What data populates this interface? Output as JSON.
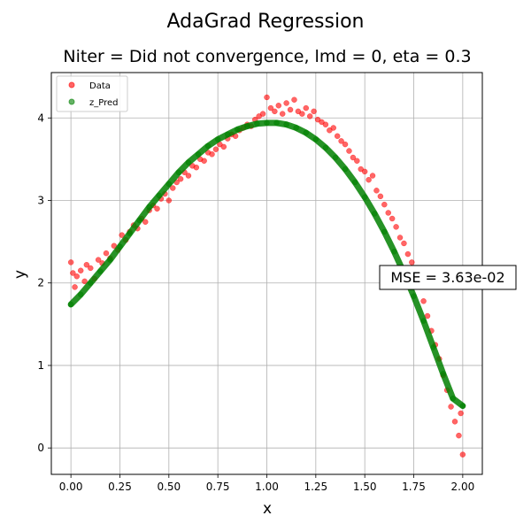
{
  "chart_data": {
    "type": "scatter",
    "suptitle": "AdaGrad Regression",
    "title": "Niter = Did not convergence, lmd = 0, eta = 0.3",
    "xlabel": "x",
    "ylabel": "y",
    "xlim": [
      -0.1,
      2.1
    ],
    "ylim": [
      -0.32,
      4.55
    ],
    "xticks": [
      "0.00",
      "0.25",
      "0.50",
      "0.75",
      "1.00",
      "1.25",
      "1.50",
      "1.75",
      "2.00"
    ],
    "yticks": [
      "0",
      "1",
      "2",
      "3",
      "4"
    ],
    "grid": true,
    "legend": {
      "position": "top-left",
      "entries": [
        "Data",
        "z_Pred"
      ]
    },
    "annotation": "MSE = 3.63e-02",
    "series": [
      {
        "name": "Data",
        "color": "#ff0000",
        "points": [
          [
            0.0,
            2.25
          ],
          [
            0.01,
            2.12
          ],
          [
            0.02,
            1.95
          ],
          [
            0.03,
            2.08
          ],
          [
            0.05,
            2.15
          ],
          [
            0.07,
            2.02
          ],
          [
            0.08,
            2.22
          ],
          [
            0.1,
            2.18
          ],
          [
            0.12,
            2.05
          ],
          [
            0.14,
            2.28
          ],
          [
            0.16,
            2.24
          ],
          [
            0.18,
            2.36
          ],
          [
            0.2,
            2.3
          ],
          [
            0.22,
            2.45
          ],
          [
            0.24,
            2.4
          ],
          [
            0.26,
            2.58
          ],
          [
            0.28,
            2.52
          ],
          [
            0.3,
            2.62
          ],
          [
            0.32,
            2.7
          ],
          [
            0.34,
            2.66
          ],
          [
            0.36,
            2.78
          ],
          [
            0.38,
            2.74
          ],
          [
            0.4,
            2.88
          ],
          [
            0.42,
            2.94
          ],
          [
            0.44,
            2.9
          ],
          [
            0.46,
            3.02
          ],
          [
            0.48,
            3.08
          ],
          [
            0.5,
            3.0
          ],
          [
            0.52,
            3.15
          ],
          [
            0.54,
            3.22
          ],
          [
            0.56,
            3.26
          ],
          [
            0.58,
            3.34
          ],
          [
            0.6,
            3.3
          ],
          [
            0.62,
            3.42
          ],
          [
            0.64,
            3.4
          ],
          [
            0.66,
            3.5
          ],
          [
            0.68,
            3.48
          ],
          [
            0.7,
            3.58
          ],
          [
            0.72,
            3.56
          ],
          [
            0.74,
            3.62
          ],
          [
            0.76,
            3.68
          ],
          [
            0.78,
            3.65
          ],
          [
            0.8,
            3.75
          ],
          [
            0.82,
            3.8
          ],
          [
            0.84,
            3.78
          ],
          [
            0.86,
            3.85
          ],
          [
            0.88,
            3.88
          ],
          [
            0.9,
            3.92
          ],
          [
            0.92,
            3.9
          ],
          [
            0.94,
            3.98
          ],
          [
            0.96,
            4.02
          ],
          [
            0.98,
            4.05
          ],
          [
            1.0,
            4.25
          ],
          [
            1.02,
            4.12
          ],
          [
            1.04,
            4.08
          ],
          [
            1.06,
            4.15
          ],
          [
            1.08,
            4.05
          ],
          [
            1.1,
            4.18
          ],
          [
            1.12,
            4.1
          ],
          [
            1.14,
            4.22
          ],
          [
            1.16,
            4.08
          ],
          [
            1.18,
            4.05
          ],
          [
            1.2,
            4.12
          ],
          [
            1.22,
            4.02
          ],
          [
            1.24,
            4.08
          ],
          [
            1.26,
            3.98
          ],
          [
            1.28,
            3.95
          ],
          [
            1.3,
            3.92
          ],
          [
            1.32,
            3.85
          ],
          [
            1.34,
            3.88
          ],
          [
            1.36,
            3.78
          ],
          [
            1.38,
            3.72
          ],
          [
            1.4,
            3.68
          ],
          [
            1.42,
            3.6
          ],
          [
            1.44,
            3.52
          ],
          [
            1.46,
            3.48
          ],
          [
            1.48,
            3.38
          ],
          [
            1.5,
            3.35
          ],
          [
            1.52,
            3.25
          ],
          [
            1.54,
            3.3
          ],
          [
            1.56,
            3.12
          ],
          [
            1.58,
            3.05
          ],
          [
            1.6,
            2.95
          ],
          [
            1.62,
            2.85
          ],
          [
            1.64,
            2.78
          ],
          [
            1.66,
            2.68
          ],
          [
            1.68,
            2.55
          ],
          [
            1.7,
            2.48
          ],
          [
            1.72,
            2.35
          ],
          [
            1.74,
            2.25
          ],
          [
            1.76,
            2.1
          ],
          [
            1.78,
            1.95
          ],
          [
            1.8,
            1.78
          ],
          [
            1.82,
            1.6
          ],
          [
            1.84,
            1.42
          ],
          [
            1.86,
            1.25
          ],
          [
            1.88,
            1.08
          ],
          [
            1.9,
            0.88
          ],
          [
            1.92,
            0.7
          ],
          [
            1.94,
            0.5
          ],
          [
            1.96,
            0.32
          ],
          [
            1.98,
            0.15
          ],
          [
            2.0,
            -0.08
          ],
          [
            1.99,
            0.42
          ]
        ]
      },
      {
        "name": "z_Pred",
        "color": "#008000",
        "points": [
          [
            0.0,
            1.74
          ],
          [
            0.05,
            1.86
          ],
          [
            0.1,
            2.0
          ],
          [
            0.15,
            2.14
          ],
          [
            0.2,
            2.28
          ],
          [
            0.25,
            2.44
          ],
          [
            0.3,
            2.6
          ],
          [
            0.35,
            2.76
          ],
          [
            0.4,
            2.92
          ],
          [
            0.45,
            3.06
          ],
          [
            0.5,
            3.2
          ],
          [
            0.55,
            3.34
          ],
          [
            0.6,
            3.46
          ],
          [
            0.65,
            3.56
          ],
          [
            0.7,
            3.66
          ],
          [
            0.75,
            3.74
          ],
          [
            0.8,
            3.8
          ],
          [
            0.85,
            3.86
          ],
          [
            0.9,
            3.9
          ],
          [
            0.95,
            3.93
          ],
          [
            1.0,
            3.94
          ],
          [
            1.05,
            3.94
          ],
          [
            1.1,
            3.92
          ],
          [
            1.15,
            3.88
          ],
          [
            1.2,
            3.82
          ],
          [
            1.25,
            3.74
          ],
          [
            1.3,
            3.64
          ],
          [
            1.35,
            3.52
          ],
          [
            1.4,
            3.38
          ],
          [
            1.45,
            3.22
          ],
          [
            1.5,
            3.04
          ],
          [
            1.55,
            2.84
          ],
          [
            1.6,
            2.62
          ],
          [
            1.65,
            2.38
          ],
          [
            1.7,
            2.12
          ],
          [
            1.75,
            1.84
          ],
          [
            1.8,
            1.54
          ],
          [
            1.85,
            1.22
          ],
          [
            1.9,
            0.9
          ],
          [
            1.95,
            0.6
          ],
          [
            2.0,
            0.51
          ]
        ]
      }
    ]
  }
}
